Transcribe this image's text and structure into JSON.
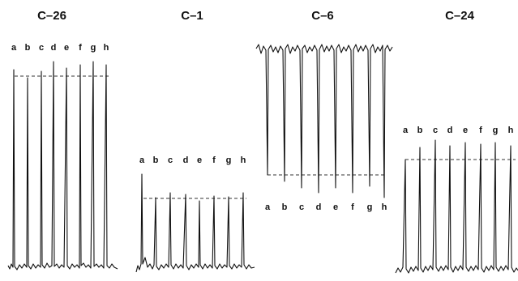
{
  "colors": {
    "trace": "#111111",
    "background": "#ffffff",
    "reference_line": "#333333"
  },
  "line_styles": {
    "trace": "solid",
    "reference_line": "dashed"
  },
  "panels": [
    {
      "title": "C–26",
      "peak_labels": [
        "a",
        "b",
        "c",
        "d",
        "e",
        "f",
        "g",
        "h"
      ],
      "orientation": "upward"
    },
    {
      "title": "C–1",
      "peak_labels": [
        "a",
        "b",
        "c",
        "d",
        "e",
        "f",
        "g",
        "h"
      ],
      "orientation": "upward"
    },
    {
      "title": "C–6",
      "peak_labels": [
        "a",
        "b",
        "c",
        "d",
        "e",
        "f",
        "g",
        "h"
      ],
      "orientation": "downward"
    },
    {
      "title": "C–24",
      "peak_labels": [
        "a",
        "b",
        "c",
        "d",
        "e",
        "f",
        "g",
        "h"
      ],
      "orientation": "upward"
    }
  ]
}
